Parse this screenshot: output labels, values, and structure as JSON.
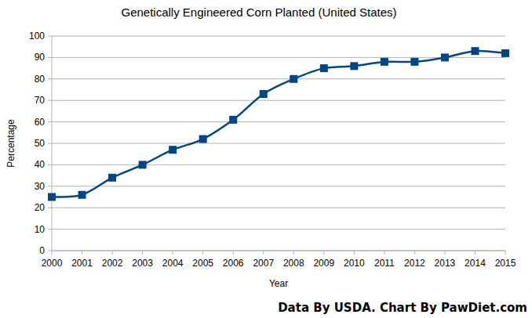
{
  "chart_data": {
    "type": "line",
    "title": "Genetically Engineered Corn Planted (United States)",
    "x_label": "Year",
    "y_label": "Percentage",
    "annotations": [
      "Data By USDA. Chart By PawDiet.com"
    ],
    "x": [
      2000,
      2001,
      2002,
      2003,
      2004,
      2005,
      2006,
      2007,
      2008,
      2009,
      2010,
      2011,
      2012,
      2013,
      2014,
      2015
    ],
    "values": [
      25,
      26,
      34,
      40,
      47,
      52,
      61,
      73,
      80,
      85,
      86,
      88,
      88,
      90,
      93,
      92
    ],
    "color": "#004586",
    "marker": "square",
    "line_style": "smooth",
    "xlim": [
      2000,
      2015
    ],
    "xticks": [
      2000,
      2001,
      2002,
      2003,
      2004,
      2005,
      2006,
      2007,
      2008,
      2009,
      2010,
      2011,
      2012,
      2013,
      2014,
      2015
    ],
    "ylim": [
      0,
      100
    ],
    "yticks": [
      0,
      10,
      20,
      30,
      40,
      50,
      60,
      70,
      80,
      90,
      100
    ],
    "grid": true
  }
}
